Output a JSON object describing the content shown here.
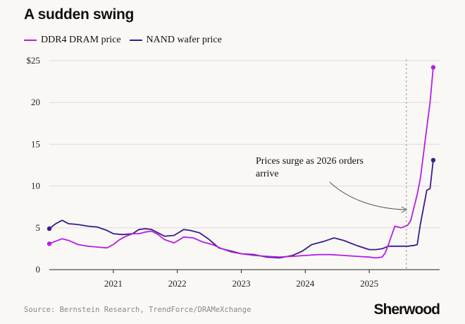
{
  "title": "A sudden swing",
  "source": "Source: Bernstein Research, TrendForce/DRAMeXchange",
  "brand": "Sherwood",
  "colors": {
    "ddr4": "#b61ee6",
    "nand": "#3d1b8c",
    "grid": "#dedbd6",
    "annotation_line": "#999999"
  },
  "chart_data": {
    "type": "line",
    "title": "A sudden swing",
    "xlabel": "",
    "ylabel": "",
    "xlim": [
      2020.0,
      2026.1
    ],
    "ylim": [
      0,
      25
    ],
    "y_ticks": [
      0,
      5,
      10,
      15,
      20,
      25
    ],
    "y_tick_labels": [
      "0",
      "5",
      "10",
      "15",
      "20",
      "$25"
    ],
    "x_ticks": [
      2021,
      2022,
      2023,
      2024,
      2025
    ],
    "x_tick_labels": [
      "2021",
      "2022",
      "2023",
      "2024",
      "2025"
    ],
    "series": [
      {
        "name": "DDR4 DRAM price",
        "color": "#b61ee6",
        "x": [
          2020.0,
          2020.1,
          2020.2,
          2020.3,
          2020.45,
          2020.6,
          2020.75,
          2020.9,
          2021.0,
          2021.1,
          2021.2,
          2021.3,
          2021.4,
          2021.5,
          2021.6,
          2021.7,
          2021.8,
          2021.95,
          2022.1,
          2022.25,
          2022.4,
          2022.55,
          2022.7,
          2022.85,
          2023.0,
          2023.2,
          2023.4,
          2023.6,
          2023.8,
          2024.0,
          2024.2,
          2024.4,
          2024.6,
          2024.8,
          2025.0,
          2025.1,
          2025.2,
          2025.25,
          2025.3,
          2025.4,
          2025.5,
          2025.6,
          2025.65,
          2025.7,
          2025.75,
          2025.8,
          2025.85,
          2025.9,
          2025.95,
          2026.0
        ],
        "y": [
          3.1,
          3.4,
          3.7,
          3.5,
          3.0,
          2.8,
          2.7,
          2.6,
          3.0,
          3.6,
          4.0,
          4.3,
          4.3,
          4.5,
          4.6,
          4.2,
          3.6,
          3.2,
          3.9,
          3.8,
          3.3,
          3.0,
          2.5,
          2.1,
          1.9,
          1.7,
          1.6,
          1.5,
          1.6,
          1.7,
          1.8,
          1.8,
          1.7,
          1.6,
          1.5,
          1.4,
          1.5,
          2.0,
          3.0,
          5.2,
          5.0,
          5.3,
          5.9,
          7.5,
          9.0,
          11.0,
          14.0,
          17.0,
          20.0,
          24.2
        ]
      },
      {
        "name": "NAND wafer price",
        "color": "#3d1b8c",
        "x": [
          2020.0,
          2020.1,
          2020.2,
          2020.3,
          2020.45,
          2020.6,
          2020.75,
          2020.9,
          2021.0,
          2021.15,
          2021.3,
          2021.4,
          2021.5,
          2021.6,
          2021.7,
          2021.8,
          2021.95,
          2022.1,
          2022.2,
          2022.35,
          2022.5,
          2022.65,
          2022.8,
          2023.0,
          2023.2,
          2023.4,
          2023.6,
          2023.8,
          2023.95,
          2024.1,
          2024.2,
          2024.3,
          2024.45,
          2024.6,
          2024.8,
          2025.0,
          2025.1,
          2025.2,
          2025.3,
          2025.4,
          2025.5,
          2025.6,
          2025.7,
          2025.75,
          2025.8,
          2025.85,
          2025.9,
          2025.95,
          2026.0
        ],
        "y": [
          4.9,
          5.5,
          5.9,
          5.5,
          5.4,
          5.2,
          5.1,
          4.7,
          4.3,
          4.2,
          4.3,
          4.8,
          4.9,
          4.8,
          4.4,
          4.0,
          4.1,
          4.8,
          4.7,
          4.4,
          3.6,
          2.6,
          2.3,
          1.9,
          1.8,
          1.5,
          1.4,
          1.7,
          2.2,
          3.0,
          3.2,
          3.4,
          3.8,
          3.5,
          2.9,
          2.4,
          2.4,
          2.5,
          2.8,
          2.8,
          2.8,
          2.8,
          2.9,
          3.0,
          5.5,
          7.5,
          9.5,
          9.7,
          13.1
        ]
      }
    ],
    "annotation": {
      "text_line1": "Prices surge as 2026 orders",
      "text_line2": "arrive",
      "x": 2025.58
    }
  }
}
